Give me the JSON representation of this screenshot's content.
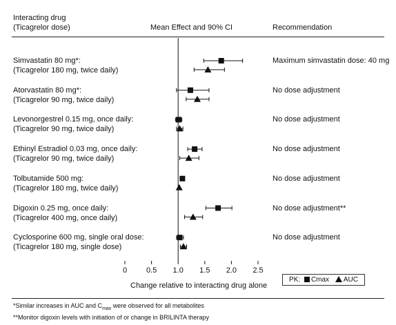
{
  "header": {
    "col1_line1": "Interacting drug",
    "col1_line2": "(Ticagrelor dose)",
    "col2": "Mean Effect and 90% CI",
    "col3": "Recommendation"
  },
  "chart_data": {
    "type": "forest",
    "xlabel": "Change relative to interacting drug alone",
    "xlim": [
      0,
      2.5
    ],
    "x_ticks": [
      "0",
      "0.5",
      "1.0",
      "1.5",
      "2.0",
      "2.5"
    ],
    "reference_line": 1.0,
    "legend": {
      "prefix": "PK:",
      "cmax": "Cmax",
      "auc": "AUC"
    },
    "rows": [
      {
        "drug": "Simvastatin 80 mg*:",
        "dose": "(Ticagrelor 180 mg, twice daily)",
        "recommendation": "Maximum simvastatin dose: 40 mg",
        "cmax": {
          "mean": 1.81,
          "lo": 1.48,
          "hi": 2.21
        },
        "auc": {
          "mean": 1.56,
          "lo": 1.3,
          "hi": 1.87
        }
      },
      {
        "drug": "Atorvastatin 80 mg*:",
        "dose": "(Ticagrelor 90 mg, twice daily)",
        "recommendation": "No dose adjustment",
        "cmax": {
          "mean": 1.23,
          "lo": 0.97,
          "hi": 1.58
        },
        "auc": {
          "mean": 1.36,
          "lo": 1.15,
          "hi": 1.58
        }
      },
      {
        "drug": "Levonorgestrel 0.15 mg, once daily:",
        "dose": "(Ticagrelor 90 mg, twice daily)",
        "recommendation": "No dose adjustment",
        "cmax": {
          "mean": 1.01,
          "lo": 0.95,
          "hi": 1.07
        },
        "auc": {
          "mean": 1.03,
          "lo": 0.97,
          "hi": 1.09
        }
      },
      {
        "drug": "Ethinyl Estradiol 0.03 mg, once daily:",
        "dose": "(Ticagrelor 90 mg, twice daily)",
        "recommendation": "No dose adjustment",
        "cmax": {
          "mean": 1.31,
          "lo": 1.18,
          "hi": 1.45
        },
        "auc": {
          "mean": 1.2,
          "lo": 1.03,
          "hi": 1.39
        }
      },
      {
        "drug": "Tolbutamide 500 mg:",
        "dose": "(Ticagrelor 180 mg, twice daily)",
        "recommendation": "No dose adjustment",
        "cmax": {
          "mean": 1.08,
          "lo": null,
          "hi": null
        },
        "auc": {
          "mean": 1.02,
          "lo": null,
          "hi": null
        }
      },
      {
        "drug": "Digoxin 0.25 mg, once daily:",
        "dose": "(Ticagrelor 400 mg, once daily)",
        "recommendation": "No dose adjustment**",
        "cmax": {
          "mean": 1.75,
          "lo": 1.52,
          "hi": 2.01
        },
        "auc": {
          "mean": 1.28,
          "lo": 1.12,
          "hi": 1.46
        }
      },
      {
        "drug": "Cyclosporine 600 mg, single oral dose:",
        "dose": "(Ticagrelor 180 mg, single dose)",
        "recommendation": "No dose adjustment",
        "cmax": {
          "mean": 1.03,
          "lo": 0.97,
          "hi": 1.1
        },
        "auc": {
          "mean": 1.1,
          "lo": 1.04,
          "hi": 1.16
        }
      }
    ]
  },
  "footnotes": {
    "note1_pre": "*Similar increases in AUC and C",
    "note1_sub": "max",
    "note1_post": " were observed for all metabolites",
    "note2": "**Monitor digoxin levels with initiation of or change in BRILINTA therapy"
  }
}
